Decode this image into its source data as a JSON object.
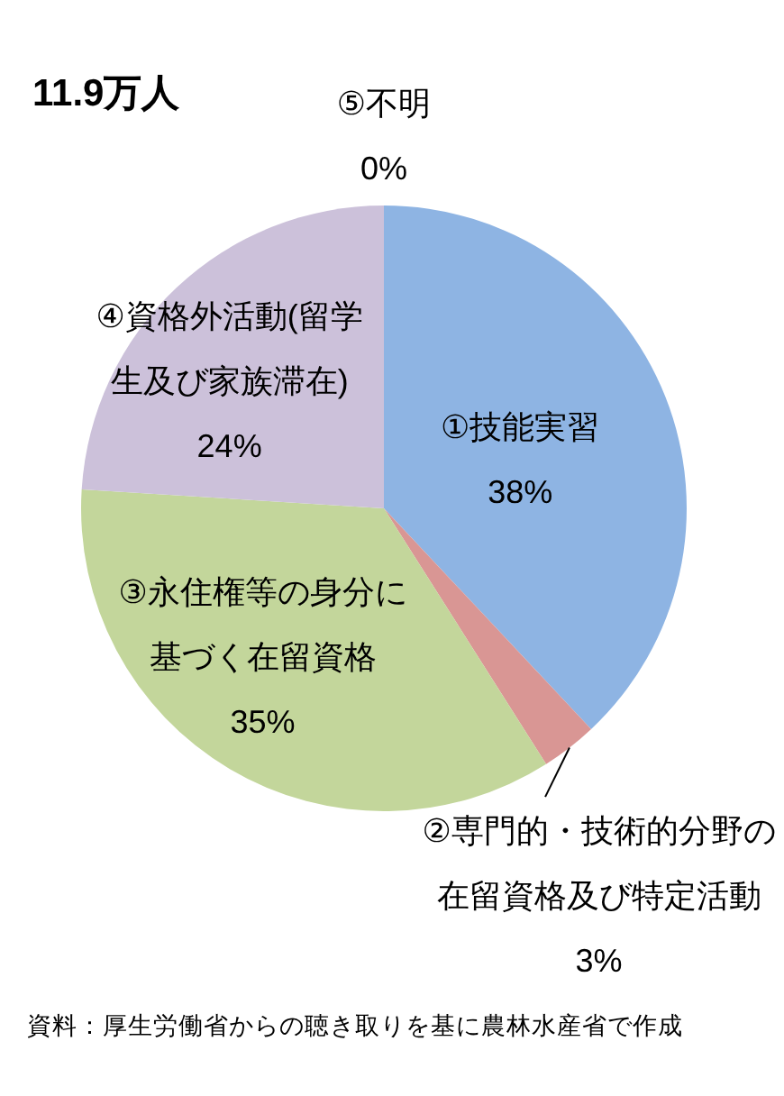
{
  "chart_data": {
    "type": "pie",
    "title": "11.9万人",
    "categories": [
      "①技能実習",
      "②専門的・技術的分野の在留資格及び特定活動",
      "③永住権等の身分に基づく在留資格",
      "④資格外活動(留学生及び家族滞在)",
      "⑤不明"
    ],
    "values": [
      38,
      3,
      35,
      24,
      0
    ],
    "value_labels": [
      "38%",
      "3%",
      "35%",
      "24%",
      "0%"
    ],
    "colors": [
      "#8eb4e3",
      "#d99694",
      "#c3d69b",
      "#ccc1da",
      null
    ],
    "annotations": [
      "資料：厚生労働省からの聴き取りを基に農林水産省で作成"
    ]
  }
}
